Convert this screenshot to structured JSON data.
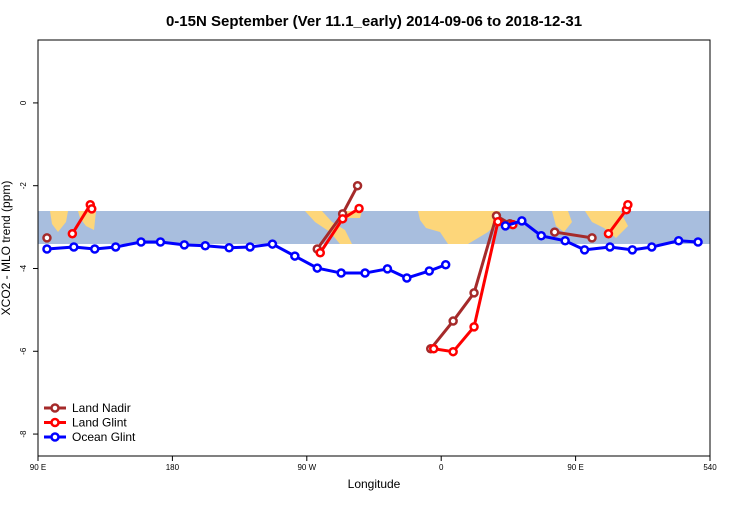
{
  "chart_data": {
    "type": "line",
    "title": "0-15N September (Ver 11.1_early)   2014-09-06 to 2018-12-31",
    "x_label": "Longitude",
    "y_label": "XCO2 - MLO trend (ppm)",
    "xlim": [
      90,
      540
    ],
    "ylim": [
      -8.53,
      1.52
    ],
    "xticks": [
      {
        "value": 90,
        "label": "90 E"
      },
      180,
      {
        "value": 270,
        "label": "90 W"
      },
      {
        "value": 360,
        "label": "0"
      },
      {
        "value": 450,
        "label": "90 E"
      },
      540
    ],
    "yticks": [
      0,
      -2,
      -4,
      -6,
      -8
    ],
    "legend": "bottom-left",
    "series": [
      {
        "name": "Land Nadir",
        "color": "#a52a2a",
        "x": [
          96,
          180,
          277,
          294,
          304,
          330,
          353,
          368,
          382,
          397,
          406,
          420,
          436,
          461
        ],
        "values": [
          -3.26,
          null,
          -3.53,
          -2.68,
          -2.0,
          null,
          -5.94,
          -5.27,
          -4.59,
          -2.73,
          -2.92,
          null,
          -3.12,
          -3.26
        ]
      },
      {
        "name": "Land Glint",
        "color": "#ff0000",
        "x": [
          113,
          125,
          126,
          200,
          279,
          294,
          305,
          330,
          355,
          368,
          382,
          398,
          408,
          440,
          472,
          484,
          485
        ],
        "values": [
          -3.16,
          -2.46,
          -2.56,
          null,
          -3.62,
          -2.8,
          -2.55,
          null,
          -5.94,
          -6.01,
          -5.41,
          -2.87,
          -2.94,
          null,
          -3.16,
          -2.58,
          -2.46
        ]
      },
      {
        "name": "Ocean Glint",
        "color": "#0000ff",
        "x": [
          96,
          114,
          128,
          142,
          159,
          172,
          188,
          202,
          218,
          232,
          247,
          262,
          277,
          293,
          309,
          324,
          337,
          352,
          363,
          383,
          403,
          414,
          427,
          443,
          456,
          473,
          488,
          501,
          519,
          532
        ],
        "values": [
          -3.53,
          -3.48,
          -3.53,
          -3.48,
          -3.36,
          -3.36,
          -3.43,
          -3.45,
          -3.5,
          -3.48,
          -3.41,
          -3.7,
          -3.99,
          -4.11,
          -4.11,
          -4.01,
          -4.23,
          -4.06,
          -3.91,
          null,
          -2.97,
          -2.85,
          -3.21,
          -3.33,
          -3.55,
          -3.48,
          -3.55,
          -3.48,
          -3.33,
          -3.36
        ]
      }
    ]
  }
}
